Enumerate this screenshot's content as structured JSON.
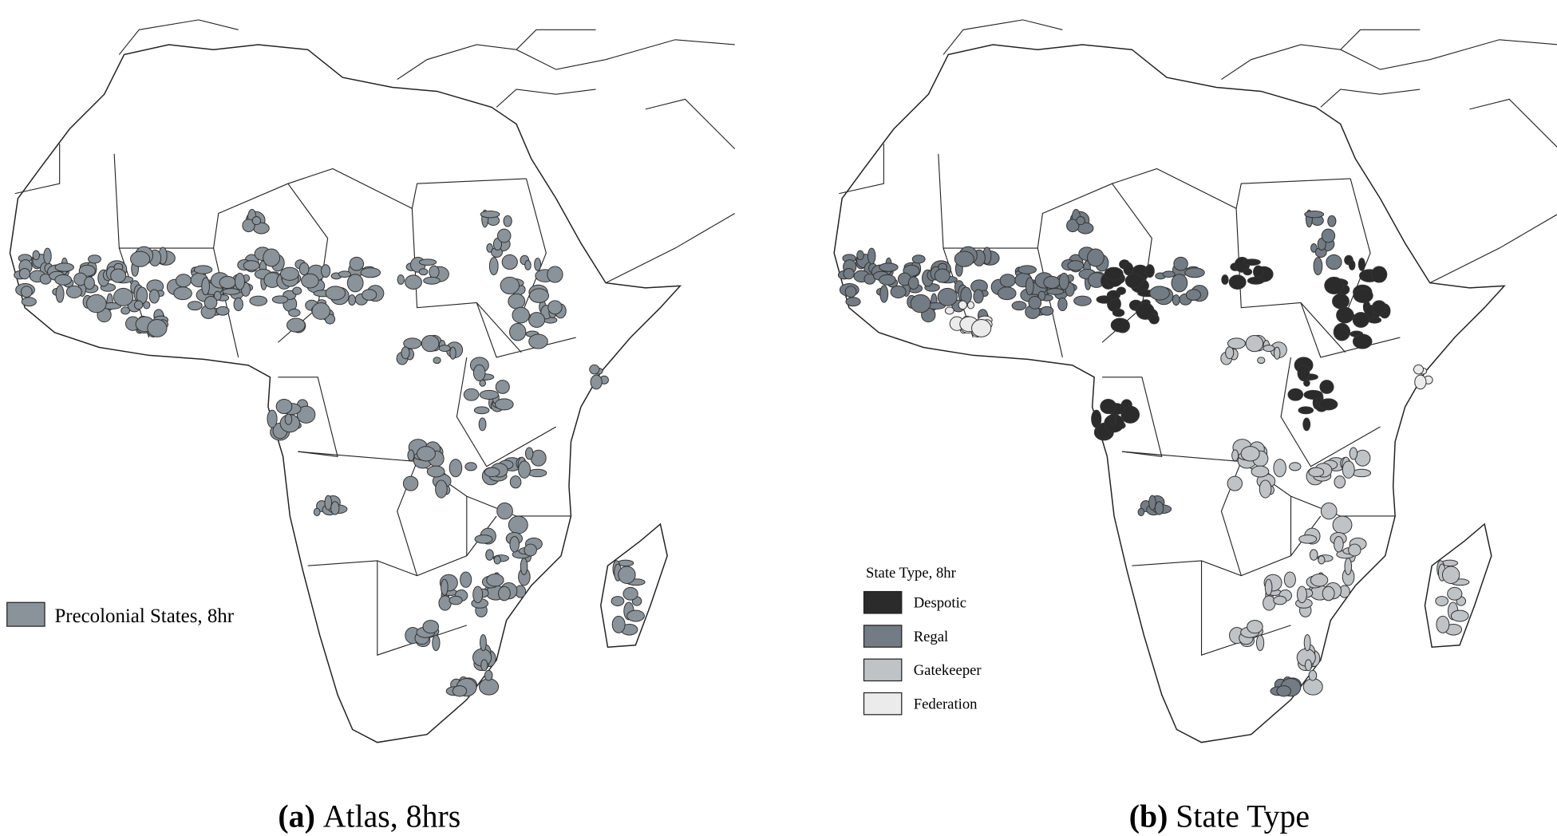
{
  "panels": [
    {
      "caption_label": "(a)",
      "caption_text": "Atlas, 8hrs",
      "legend": {
        "items": [
          {
            "label": "Precolonial States, 8hr",
            "color": "#8a9399"
          }
        ]
      }
    },
    {
      "caption_label": "(b)",
      "caption_text": "State Type",
      "legend": {
        "title": "State Type,  8hr",
        "items": [
          {
            "label": "Despotic",
            "color": "#2b2b2b"
          },
          {
            "label": "Regal",
            "color": "#737c84"
          },
          {
            "label": "Gatekeeper",
            "color": "#bfc3c5"
          },
          {
            "label": "Federation",
            "color": "#ebebeb"
          }
        ]
      }
    }
  ]
}
